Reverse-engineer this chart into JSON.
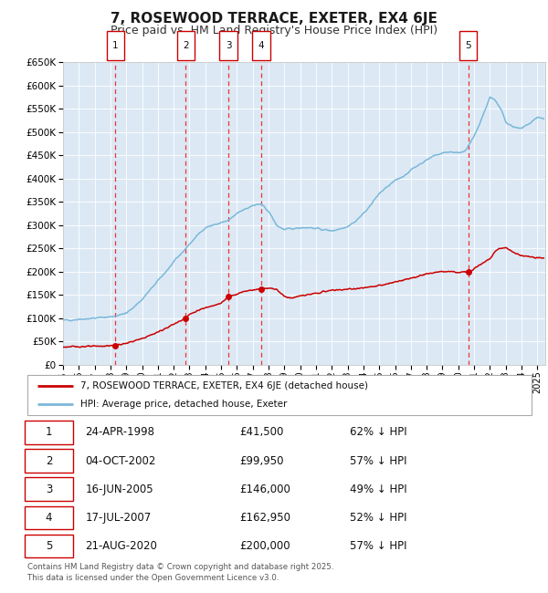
{
  "title": "7, ROSEWOOD TERRACE, EXETER, EX4 6JE",
  "subtitle": "Price paid vs. HM Land Registry's House Price Index (HPI)",
  "bg_color": "#dce9f5",
  "grid_color": "#ffffff",
  "sale_points": [
    {
      "label": "1",
      "year": 1998.31,
      "price": 41500,
      "date": "24-APR-1998",
      "pct": "62%"
    },
    {
      "label": "2",
      "year": 2002.75,
      "price": 99950,
      "date": "04-OCT-2002",
      "pct": "57%"
    },
    {
      "label": "3",
      "year": 2005.46,
      "price": 146000,
      "date": "16-JUN-2005",
      "pct": "49%"
    },
    {
      "label": "4",
      "year": 2007.54,
      "price": 162950,
      "date": "17-JUL-2007",
      "pct": "52%"
    },
    {
      "label": "5",
      "year": 2020.64,
      "price": 200000,
      "date": "21-AUG-2020",
      "pct": "57%"
    }
  ],
  "hpi_color": "#7ab8d9",
  "price_color": "#cc0000",
  "vline_color": "#ee3333",
  "ylim": [
    0,
    650000
  ],
  "xlim_start": 1995.0,
  "xlim_end": 2025.5,
  "yticks": [
    0,
    50000,
    100000,
    150000,
    200000,
    250000,
    300000,
    350000,
    400000,
    450000,
    500000,
    550000,
    600000,
    650000
  ],
  "xtick_years": [
    1995,
    1996,
    1997,
    1998,
    1999,
    2000,
    2001,
    2002,
    2003,
    2004,
    2005,
    2006,
    2007,
    2008,
    2009,
    2010,
    2011,
    2012,
    2013,
    2014,
    2015,
    2016,
    2017,
    2018,
    2019,
    2020,
    2021,
    2022,
    2023,
    2024,
    2025
  ],
  "legend_line1": "7, ROSEWOOD TERRACE, EXETER, EX4 6JE (detached house)",
  "legend_line2": "HPI: Average price, detached house, Exeter",
  "footer": "Contains HM Land Registry data © Crown copyright and database right 2025.\nThis data is licensed under the Open Government Licence v3.0.",
  "table_rows": [
    [
      "1",
      "24-APR-1998",
      "£41,500",
      "62% ↓ HPI"
    ],
    [
      "2",
      "04-OCT-2002",
      "£99,950",
      "57% ↓ HPI"
    ],
    [
      "3",
      "16-JUN-2005",
      "£146,000",
      "49% ↓ HPI"
    ],
    [
      "4",
      "17-JUL-2007",
      "£162,950",
      "52% ↓ HPI"
    ],
    [
      "5",
      "21-AUG-2020",
      "£200,000",
      "57% ↓ HPI"
    ]
  ]
}
